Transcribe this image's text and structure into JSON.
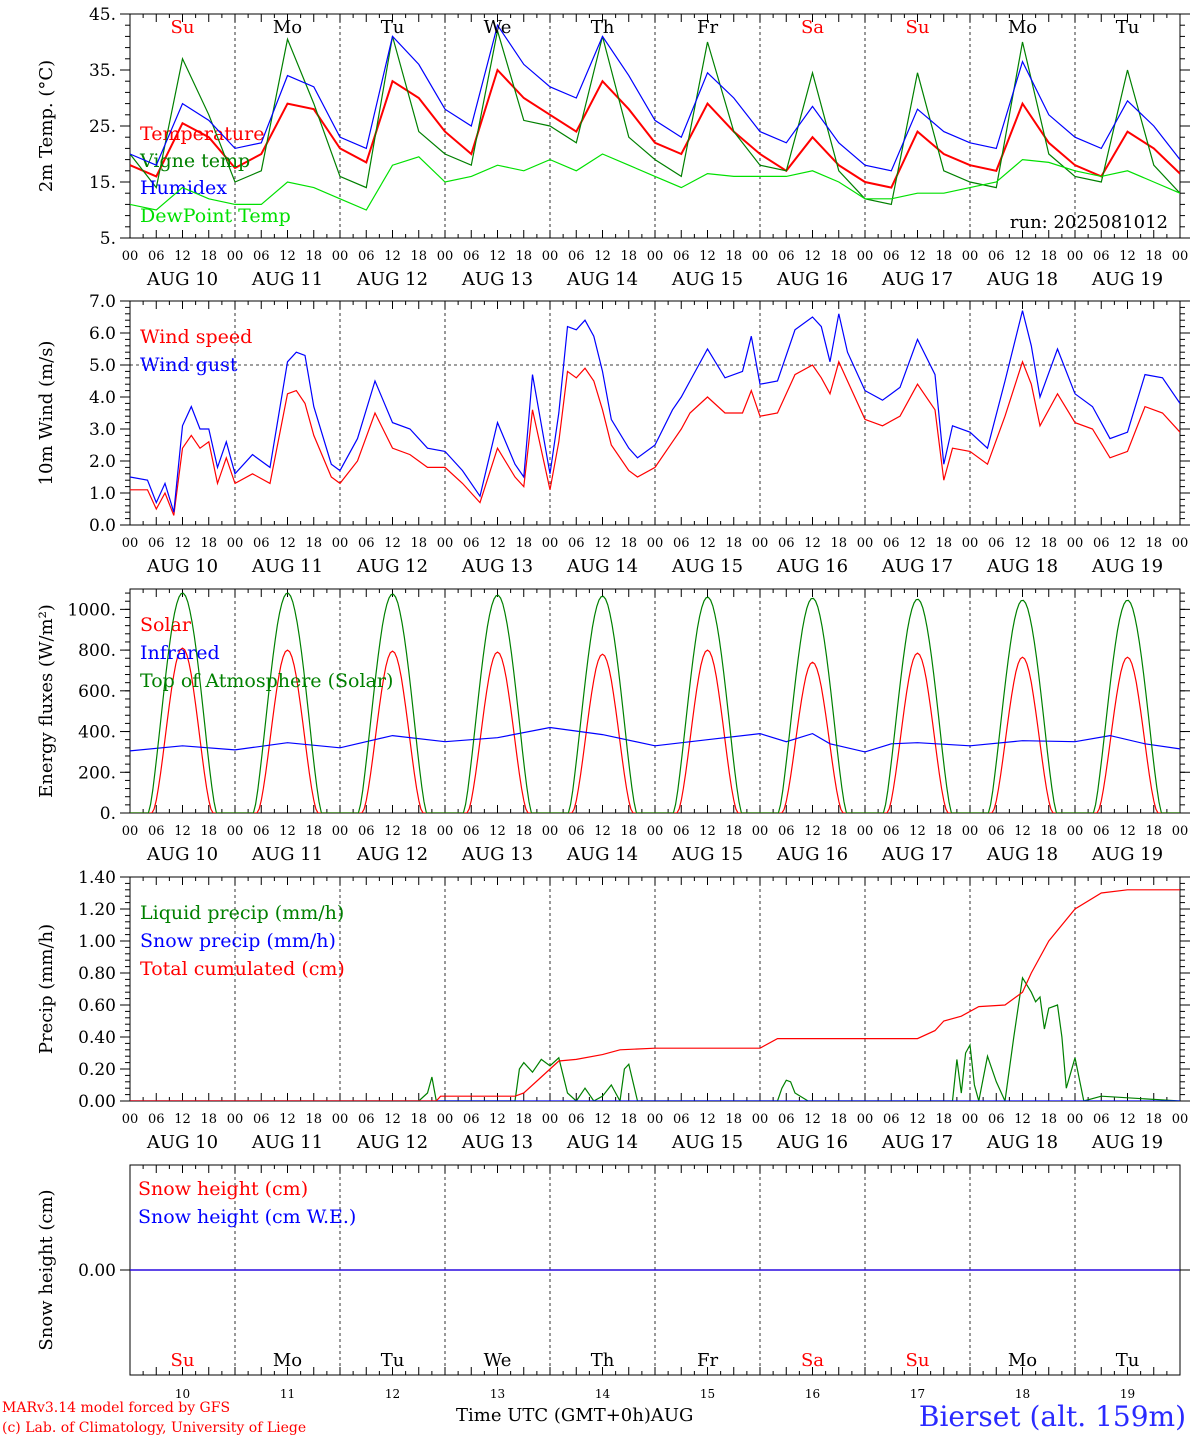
{
  "station": {
    "name": "Bierset (alt. 159m)"
  },
  "footer": {
    "credit_line1": "MARv3.14 model forced by GFS",
    "credit_line2": "(c) Lab. of Climatology, University of Liege",
    "xaxis_title": "Time UTC (GMT+0h)",
    "month": "AUG"
  },
  "axis": {
    "hour_labels": [
      "00",
      "06",
      "12",
      "18"
    ],
    "end_label": "00",
    "day_labels": [
      "AUG 10",
      "AUG 11",
      "AUG 12",
      "AUG 13",
      "AUG 14",
      "AUG 15",
      "AUG 16",
      "AUG 17",
      "AUG 18",
      "AUG 19"
    ],
    "day_numbers": [
      "10",
      "11",
      "12",
      "13",
      "14",
      "15",
      "16",
      "17",
      "18",
      "19"
    ],
    "weekdays": [
      "Su",
      "Mo",
      "Tu",
      "We",
      "Th",
      "Fr",
      "Sa",
      "Su",
      "Mo",
      "Tu"
    ],
    "weekday_colors": [
      "#ff0000",
      "#000000",
      "#000000",
      "#000000",
      "#000000",
      "#000000",
      "#ff0000",
      "#ff0000",
      "#000000",
      "#000000"
    ]
  },
  "colors": {
    "red": "#ff0000",
    "green": "#008000",
    "blue": "#0000ff",
    "lightgreen": "#00e000",
    "gray": "#555555"
  },
  "chart_data": [
    {
      "id": "temp",
      "type": "line",
      "ylabel": "2m Temp. (°C)",
      "ylim": [
        5,
        45
      ],
      "yticks": [
        5,
        15,
        25,
        35,
        45
      ],
      "ytick_labels": [
        "5.",
        "15.",
        "25.",
        "35.",
        "45."
      ],
      "run_label": "run: 2025081012",
      "x_unit": "hours since AUG 10 00 UTC",
      "series": [
        {
          "name": "Temperature",
          "color": "#ff0000",
          "x": [
            0,
            6,
            12,
            18,
            24,
            30,
            36,
            42,
            48,
            54,
            60,
            66,
            72,
            78,
            84,
            90,
            96,
            102,
            108,
            114,
            120,
            126,
            132,
            138,
            144,
            150,
            156,
            162,
            168,
            174,
            180,
            186,
            192,
            198,
            204,
            210,
            216,
            222,
            228,
            234,
            240
          ],
          "y": [
            18,
            16,
            25.5,
            23,
            17.5,
            20,
            29,
            28,
            21,
            18.5,
            33,
            30,
            24,
            20,
            35,
            30,
            27,
            24,
            33,
            28,
            22,
            20,
            29,
            24,
            20,
            17,
            23,
            18,
            15,
            14,
            24,
            20,
            18,
            17,
            29,
            22,
            18,
            16,
            24,
            21,
            16.5
          ]
        },
        {
          "name": "Vigne temp",
          "color": "#008000",
          "x": [
            0,
            6,
            12,
            18,
            24,
            30,
            36,
            42,
            48,
            54,
            60,
            66,
            72,
            78,
            84,
            90,
            96,
            102,
            108,
            114,
            120,
            126,
            132,
            138,
            144,
            150,
            156,
            162,
            168,
            174,
            180,
            186,
            192,
            198,
            204,
            210,
            216,
            222,
            228,
            234,
            240
          ],
          "y": [
            20,
            14,
            37,
            27,
            15,
            17,
            40.5,
            29,
            16,
            14,
            41,
            24,
            20,
            18,
            42,
            26,
            25,
            22,
            41,
            23,
            19,
            16,
            40,
            24,
            18,
            17,
            34.5,
            17,
            12,
            11,
            34.5,
            17,
            15,
            14,
            40,
            20,
            16,
            15,
            35,
            18,
            13
          ]
        },
        {
          "name": "Humidex",
          "color": "#0000ff",
          "x": [
            0,
            6,
            12,
            18,
            24,
            30,
            36,
            42,
            48,
            54,
            60,
            66,
            72,
            78,
            84,
            90,
            96,
            102,
            108,
            114,
            120,
            126,
            132,
            138,
            144,
            150,
            156,
            162,
            168,
            174,
            180,
            186,
            192,
            198,
            204,
            210,
            216,
            222,
            228,
            234,
            240
          ],
          "y": [
            20,
            18,
            29,
            26,
            21,
            22,
            34,
            32,
            23,
            21,
            41,
            36,
            28,
            25,
            43,
            36,
            32,
            30,
            41,
            34,
            26,
            23,
            34.5,
            30,
            24,
            22,
            28.5,
            22,
            18,
            17,
            28,
            24,
            22,
            21,
            36.5,
            27,
            23,
            21,
            29.5,
            25,
            19
          ]
        },
        {
          "name": "DewPoint Temp",
          "color": "#00e000",
          "x": [
            0,
            6,
            12,
            18,
            24,
            30,
            36,
            42,
            48,
            54,
            60,
            66,
            72,
            78,
            84,
            90,
            96,
            102,
            108,
            114,
            120,
            126,
            132,
            138,
            144,
            150,
            156,
            162,
            168,
            174,
            180,
            186,
            192,
            198,
            204,
            210,
            216,
            222,
            228,
            234,
            240
          ],
          "y": [
            11,
            10,
            14,
            12,
            11,
            11,
            15,
            14,
            12,
            10,
            18,
            19.5,
            15,
            16,
            18,
            17,
            19,
            17,
            20,
            18,
            16,
            14,
            16.5,
            16,
            16,
            16,
            17,
            15,
            12,
            12,
            13,
            13,
            14,
            15,
            19,
            18.5,
            17,
            16,
            17,
            15,
            13
          ]
        }
      ]
    },
    {
      "id": "wind",
      "type": "line",
      "ylabel": "10m Wind (m/s)",
      "ylim": [
        0,
        7
      ],
      "yticks": [
        0,
        1,
        2,
        3,
        4,
        5,
        6,
        7
      ],
      "ytick_labels": [
        "0.0",
        "1.0",
        "2.0",
        "3.0",
        "4.0",
        "5.0",
        "6.0",
        "7.0"
      ],
      "ref_line": 5,
      "series": [
        {
          "name": "Wind speed",
          "color": "#ff0000",
          "x": [
            0,
            4,
            6,
            8,
            10,
            12,
            14,
            16,
            18,
            20,
            22,
            24,
            28,
            32,
            36,
            38,
            40,
            42,
            46,
            48,
            52,
            56,
            60,
            64,
            68,
            72,
            76,
            80,
            84,
            88,
            90,
            92,
            96,
            98,
            100,
            102,
            104,
            106,
            108,
            110,
            114,
            116,
            120,
            124,
            126,
            128,
            132,
            136,
            140,
            142,
            144,
            148,
            152,
            156,
            158,
            160,
            162,
            164,
            168,
            172,
            176,
            180,
            184,
            186,
            188,
            192,
            196,
            200,
            204,
            206,
            208,
            212,
            216,
            220,
            224,
            228,
            232,
            236,
            240
          ],
          "y": [
            1.1,
            1.1,
            0.5,
            1,
            0.3,
            2.4,
            2.8,
            2.4,
            2.6,
            1.3,
            2.1,
            1.3,
            1.6,
            1.3,
            4.1,
            4.2,
            3.8,
            2.8,
            1.5,
            1.3,
            2,
            3.5,
            2.4,
            2.2,
            1.8,
            1.8,
            1.3,
            0.7,
            2.4,
            1.5,
            1.2,
            3.6,
            1.1,
            2.6,
            4.8,
            4.6,
            4.9,
            4.5,
            3.6,
            2.5,
            1.7,
            1.5,
            1.8,
            2.6,
            3,
            3.5,
            4,
            3.5,
            3.5,
            4.2,
            3.4,
            3.5,
            4.7,
            5,
            4.6,
            4.1,
            5.1,
            4.5,
            3.3,
            3.1,
            3.4,
            4.4,
            3.6,
            1.4,
            2.4,
            2.3,
            1.9,
            3.4,
            5.1,
            4.4,
            3.1,
            4.1,
            3.2,
            3,
            2.1,
            2.3,
            3.7,
            3.5,
            2.9
          ]
        },
        {
          "name": "Wind gust",
          "color": "#0000ff",
          "x": [
            0,
            4,
            6,
            8,
            10,
            12,
            14,
            16,
            18,
            20,
            22,
            24,
            28,
            32,
            36,
            38,
            40,
            42,
            46,
            48,
            52,
            56,
            60,
            64,
            68,
            72,
            76,
            80,
            84,
            88,
            90,
            92,
            96,
            98,
            100,
            102,
            104,
            106,
            108,
            110,
            114,
            116,
            120,
            124,
            126,
            128,
            132,
            136,
            140,
            142,
            144,
            148,
            152,
            156,
            158,
            160,
            162,
            164,
            168,
            172,
            176,
            180,
            184,
            186,
            188,
            192,
            196,
            200,
            204,
            206,
            208,
            212,
            216,
            220,
            224,
            228,
            232,
            236,
            240
          ],
          "y": [
            1.5,
            1.4,
            0.7,
            1.3,
            0.4,
            3.1,
            3.7,
            3,
            3,
            1.8,
            2.6,
            1.6,
            2.2,
            1.8,
            5.1,
            5.4,
            5.3,
            3.7,
            1.9,
            1.7,
            2.7,
            4.5,
            3.2,
            3,
            2.4,
            2.3,
            1.7,
            0.9,
            3.2,
            1.9,
            1.5,
            4.7,
            1.6,
            3.5,
            6.2,
            6.1,
            6.4,
            5.9,
            4.8,
            3.3,
            2.4,
            2.1,
            2.5,
            3.6,
            4,
            4.5,
            5.5,
            4.6,
            4.8,
            5.9,
            4.4,
            4.5,
            6.1,
            6.5,
            6.2,
            5.1,
            6.6,
            5.4,
            4.2,
            3.9,
            4.3,
            5.8,
            4.7,
            1.9,
            3.1,
            2.9,
            2.4,
            4.5,
            6.7,
            5.6,
            4,
            5.5,
            4.1,
            3.7,
            2.7,
            2.9,
            4.7,
            4.6,
            3.8
          ]
        }
      ]
    },
    {
      "id": "energy",
      "type": "line",
      "ylabel": "Energy fluxes (W/m²)",
      "ylim": [
        0,
        1100
      ],
      "yticks": [
        0,
        200,
        400,
        600,
        800,
        1000
      ],
      "ytick_labels": [
        "0.",
        "200.",
        "400.",
        "600.",
        "800.",
        "1000."
      ],
      "series": [
        {
          "name": "Solar",
          "color": "#ff0000",
          "day_peaks": [
            810,
            800,
            795,
            790,
            780,
            800,
            740,
            785,
            765,
            765
          ]
        },
        {
          "name": "Infrared",
          "color": "#0000ff",
          "x": [
            0,
            12,
            24,
            36,
            48,
            60,
            72,
            84,
            96,
            108,
            120,
            132,
            144,
            150,
            156,
            160,
            162,
            168,
            174,
            180,
            192,
            204,
            216,
            224,
            232,
            240
          ],
          "y": [
            305,
            330,
            310,
            345,
            320,
            380,
            350,
            370,
            420,
            385,
            330,
            360,
            390,
            350,
            390,
            340,
            330,
            300,
            340,
            345,
            330,
            355,
            350,
            380,
            340,
            315
          ]
        },
        {
          "name": "Top of Atmosphere (Solar)",
          "color": "#008000",
          "day_peaks": [
            1080,
            1080,
            1075,
            1070,
            1065,
            1060,
            1055,
            1050,
            1045,
            1045
          ]
        }
      ]
    },
    {
      "id": "precip",
      "type": "line",
      "ylabel": "Precip (mm/h)",
      "ylim": [
        0,
        1.4
      ],
      "yticks": [
        0,
        0.2,
        0.4,
        0.6,
        0.8,
        1.0,
        1.2,
        1.4
      ],
      "ytick_labels": [
        "0.00",
        "0.20",
        "0.40",
        "0.60",
        "0.80",
        "1.00",
        "1.20",
        "1.40"
      ],
      "series": [
        {
          "name": "Liquid precip (mm/h)",
          "color": "#008000",
          "x": [
            0,
            66,
            68,
            69,
            70,
            72,
            88,
            89,
            90,
            92,
            94,
            96,
            98,
            100,
            102,
            104,
            106,
            108,
            110,
            112,
            113,
            114,
            116,
            120,
            148,
            149,
            150,
            151,
            152,
            155,
            188,
            189,
            190,
            191,
            192,
            193,
            194,
            196,
            198,
            200,
            202,
            204,
            206,
            207,
            208,
            209,
            210,
            212,
            213,
            214,
            216,
            218,
            222,
            240
          ],
          "y": [
            0,
            0,
            0.05,
            0.15,
            0,
            0,
            0,
            0.2,
            0.24,
            0.18,
            0.26,
            0.22,
            0.27,
            0.05,
            0,
            0.08,
            0,
            0.03,
            0.1,
            0,
            0.2,
            0.23,
            0,
            0,
            0,
            0.08,
            0.13,
            0.12,
            0.05,
            0,
            0,
            0.26,
            0.05,
            0.3,
            0.35,
            0.1,
            0,
            0.28,
            0.12,
            0,
            0.4,
            0.77,
            0.68,
            0.62,
            0.65,
            0.45,
            0.58,
            0.6,
            0.4,
            0.08,
            0.27,
            0,
            0.03,
            0
          ]
        },
        {
          "name": "Snow precip (mm/h)",
          "color": "#0000ff",
          "x": [
            0,
            240
          ],
          "y": [
            0,
            0
          ]
        },
        {
          "name": "Total cumulated (cm)",
          "color": "#ff0000",
          "x": [
            0,
            70,
            71,
            88,
            90,
            94,
            98,
            102,
            108,
            112,
            120,
            144,
            148,
            180,
            184,
            186,
            190,
            194,
            200,
            204,
            206,
            210,
            216,
            222,
            228,
            240
          ],
          "y": [
            0,
            0,
            0.03,
            0.03,
            0.05,
            0.15,
            0.25,
            0.26,
            0.29,
            0.32,
            0.33,
            0.33,
            0.39,
            0.39,
            0.44,
            0.5,
            0.53,
            0.59,
            0.6,
            0.68,
            0.8,
            1.0,
            1.2,
            1.3,
            1.32,
            1.32
          ]
        }
      ]
    },
    {
      "id": "snow",
      "type": "line",
      "ylabel": "Snow height (cm)",
      "ylim": [
        -1,
        1
      ],
      "yticks": [
        0
      ],
      "ytick_labels": [
        "0.00"
      ],
      "series": [
        {
          "name": "Snow height (cm)",
          "color": "#ff0000",
          "x": [
            0,
            240
          ],
          "y": [
            0,
            0
          ]
        },
        {
          "name": "Snow height (cm W.E.)",
          "color": "#0000ff",
          "x": [
            0,
            240
          ],
          "y": [
            0,
            0
          ]
        }
      ]
    }
  ]
}
